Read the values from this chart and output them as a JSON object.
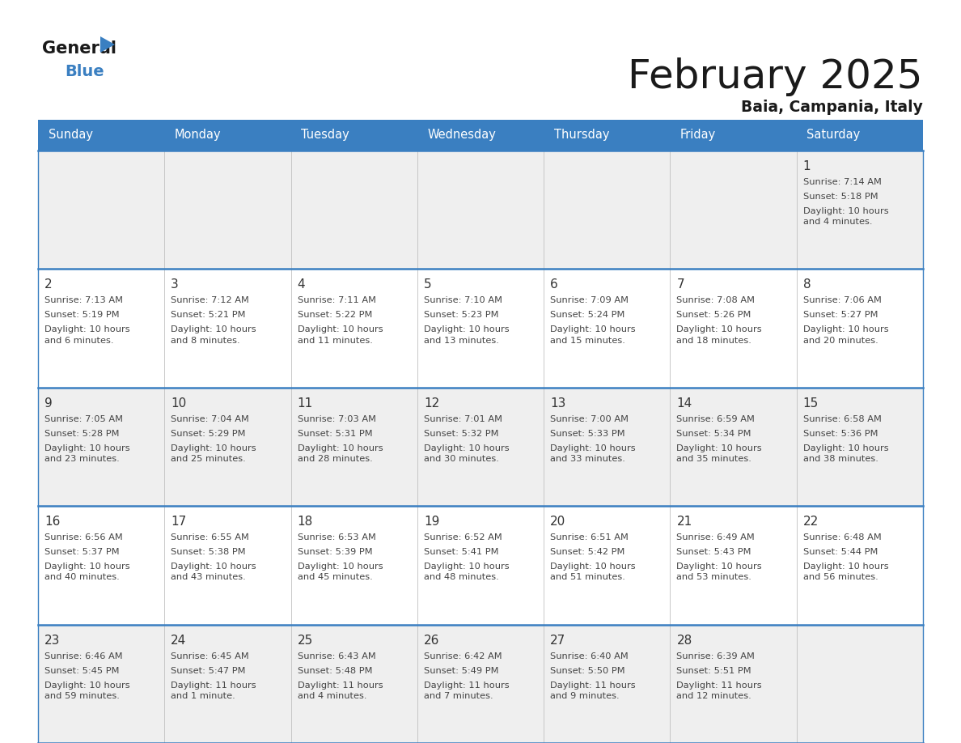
{
  "title": "February 2025",
  "subtitle": "Baia, Campania, Italy",
  "header_bg": "#3a7fc1",
  "header_text": "#ffffff",
  "day_names": [
    "Sunday",
    "Monday",
    "Tuesday",
    "Wednesday",
    "Thursday",
    "Friday",
    "Saturday"
  ],
  "cell_bg_odd": "#efefef",
  "cell_bg_even": "#ffffff",
  "border_color": "#3a7fc1",
  "sep_color": "#c0c0c0",
  "date_color": "#333333",
  "text_color": "#444444",
  "calendar": [
    [
      null,
      null,
      null,
      null,
      null,
      null,
      {
        "day": "1",
        "sunrise": "7:14 AM",
        "sunset": "5:18 PM",
        "daylight": "10 hours\nand 4 minutes."
      }
    ],
    [
      {
        "day": "2",
        "sunrise": "7:13 AM",
        "sunset": "5:19 PM",
        "daylight": "10 hours\nand 6 minutes."
      },
      {
        "day": "3",
        "sunrise": "7:12 AM",
        "sunset": "5:21 PM",
        "daylight": "10 hours\nand 8 minutes."
      },
      {
        "day": "4",
        "sunrise": "7:11 AM",
        "sunset": "5:22 PM",
        "daylight": "10 hours\nand 11 minutes."
      },
      {
        "day": "5",
        "sunrise": "7:10 AM",
        "sunset": "5:23 PM",
        "daylight": "10 hours\nand 13 minutes."
      },
      {
        "day": "6",
        "sunrise": "7:09 AM",
        "sunset": "5:24 PM",
        "daylight": "10 hours\nand 15 minutes."
      },
      {
        "day": "7",
        "sunrise": "7:08 AM",
        "sunset": "5:26 PM",
        "daylight": "10 hours\nand 18 minutes."
      },
      {
        "day": "8",
        "sunrise": "7:06 AM",
        "sunset": "5:27 PM",
        "daylight": "10 hours\nand 20 minutes."
      }
    ],
    [
      {
        "day": "9",
        "sunrise": "7:05 AM",
        "sunset": "5:28 PM",
        "daylight": "10 hours\nand 23 minutes."
      },
      {
        "day": "10",
        "sunrise": "7:04 AM",
        "sunset": "5:29 PM",
        "daylight": "10 hours\nand 25 minutes."
      },
      {
        "day": "11",
        "sunrise": "7:03 AM",
        "sunset": "5:31 PM",
        "daylight": "10 hours\nand 28 minutes."
      },
      {
        "day": "12",
        "sunrise": "7:01 AM",
        "sunset": "5:32 PM",
        "daylight": "10 hours\nand 30 minutes."
      },
      {
        "day": "13",
        "sunrise": "7:00 AM",
        "sunset": "5:33 PM",
        "daylight": "10 hours\nand 33 minutes."
      },
      {
        "day": "14",
        "sunrise": "6:59 AM",
        "sunset": "5:34 PM",
        "daylight": "10 hours\nand 35 minutes."
      },
      {
        "day": "15",
        "sunrise": "6:58 AM",
        "sunset": "5:36 PM",
        "daylight": "10 hours\nand 38 minutes."
      }
    ],
    [
      {
        "day": "16",
        "sunrise": "6:56 AM",
        "sunset": "5:37 PM",
        "daylight": "10 hours\nand 40 minutes."
      },
      {
        "day": "17",
        "sunrise": "6:55 AM",
        "sunset": "5:38 PM",
        "daylight": "10 hours\nand 43 minutes."
      },
      {
        "day": "18",
        "sunrise": "6:53 AM",
        "sunset": "5:39 PM",
        "daylight": "10 hours\nand 45 minutes."
      },
      {
        "day": "19",
        "sunrise": "6:52 AM",
        "sunset": "5:41 PM",
        "daylight": "10 hours\nand 48 minutes."
      },
      {
        "day": "20",
        "sunrise": "6:51 AM",
        "sunset": "5:42 PM",
        "daylight": "10 hours\nand 51 minutes."
      },
      {
        "day": "21",
        "sunrise": "6:49 AM",
        "sunset": "5:43 PM",
        "daylight": "10 hours\nand 53 minutes."
      },
      {
        "day": "22",
        "sunrise": "6:48 AM",
        "sunset": "5:44 PM",
        "daylight": "10 hours\nand 56 minutes."
      }
    ],
    [
      {
        "day": "23",
        "sunrise": "6:46 AM",
        "sunset": "5:45 PM",
        "daylight": "10 hours\nand 59 minutes."
      },
      {
        "day": "24",
        "sunrise": "6:45 AM",
        "sunset": "5:47 PM",
        "daylight": "11 hours\nand 1 minute."
      },
      {
        "day": "25",
        "sunrise": "6:43 AM",
        "sunset": "5:48 PM",
        "daylight": "11 hours\nand 4 minutes."
      },
      {
        "day": "26",
        "sunrise": "6:42 AM",
        "sunset": "5:49 PM",
        "daylight": "11 hours\nand 7 minutes."
      },
      {
        "day": "27",
        "sunrise": "6:40 AM",
        "sunset": "5:50 PM",
        "daylight": "11 hours\nand 9 minutes."
      },
      {
        "day": "28",
        "sunrise": "6:39 AM",
        "sunset": "5:51 PM",
        "daylight": "11 hours\nand 12 minutes."
      },
      null
    ]
  ]
}
